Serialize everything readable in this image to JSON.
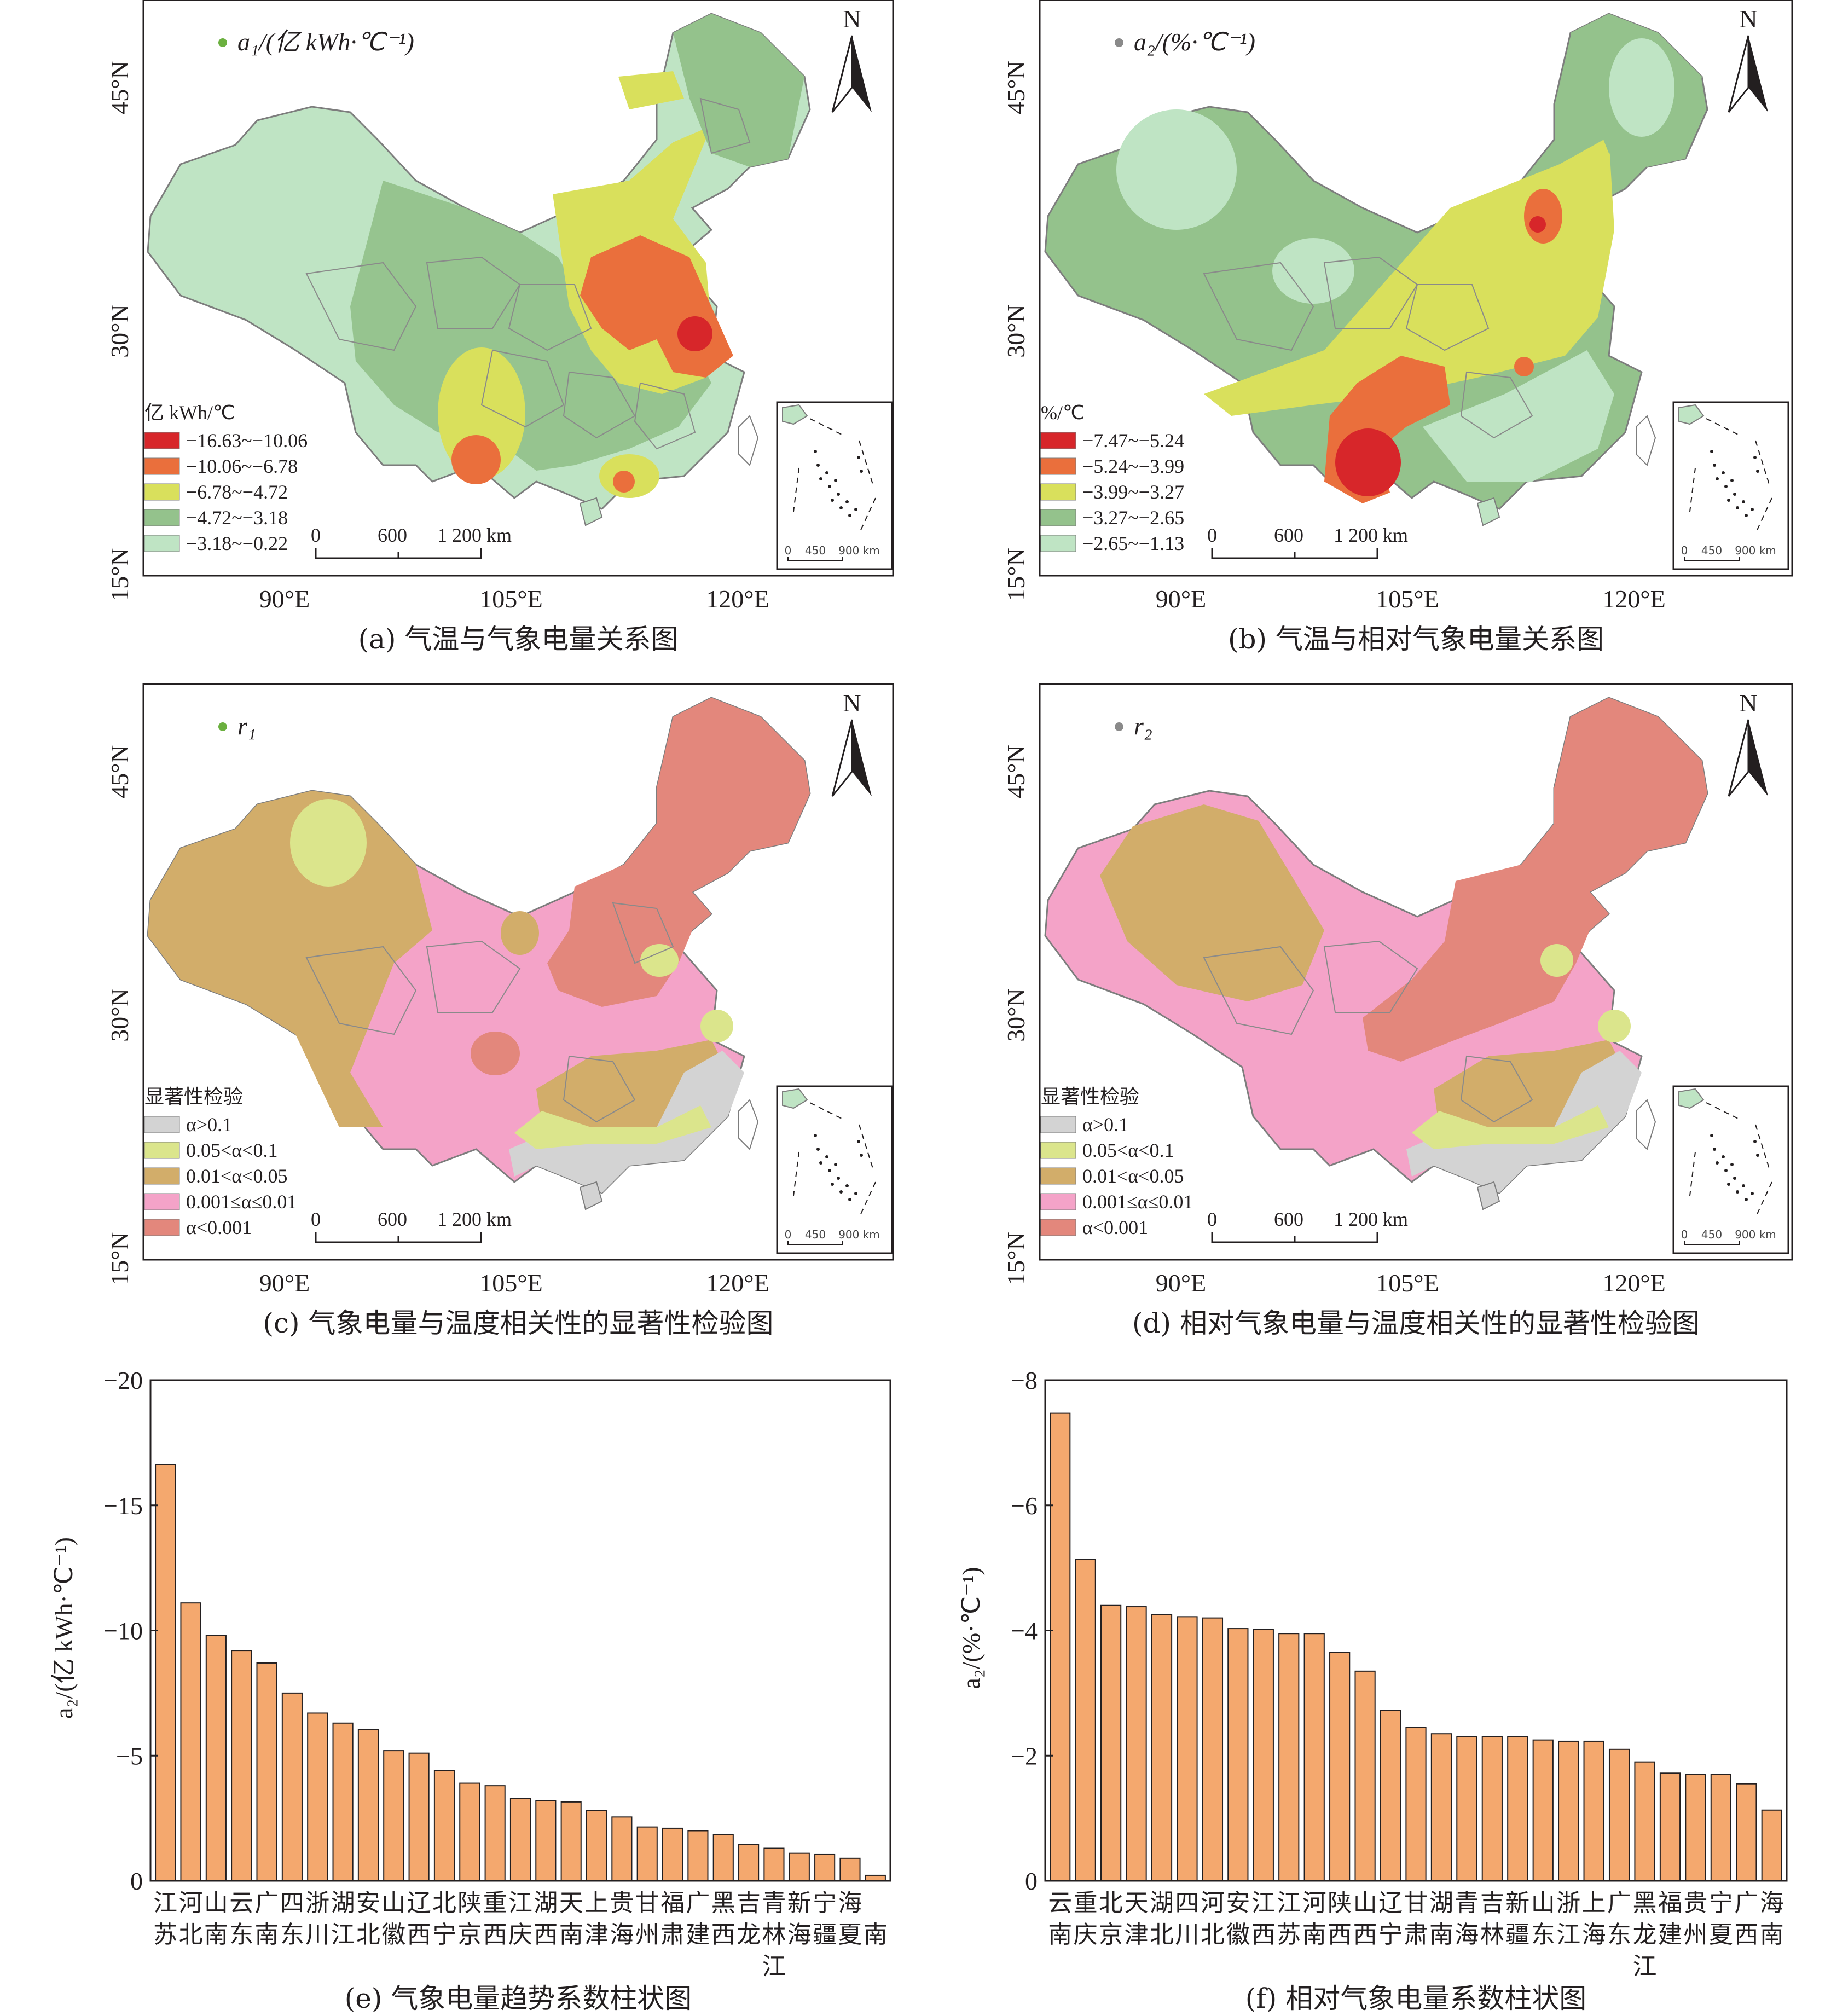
{
  "captions": {
    "a": "(a) 气温与气象电量关系图",
    "b": "(b) 气温与相对气象电量关系图",
    "c": "(c) 气象电量与温度相关性的显著性检验图",
    "d": "(d) 相对气象电量与温度相关性的显著性检验图",
    "e": "(e) 气象电量趋势系数柱状图",
    "f": "(f) 相对气象电量系数柱状图"
  },
  "maps": {
    "lat_labels": [
      "45°N",
      "30°N",
      "15°N"
    ],
    "lon_labels": [
      "90°E",
      "105°E",
      "120°E"
    ],
    "north_label": "N",
    "scale": {
      "zero": "0",
      "mid": "600",
      "end": "1 200 km"
    },
    "inset_scale": {
      "zero": "0",
      "mid": "450",
      "end": "900 km"
    },
    "a": {
      "var_label": "a₁/(亿 kWh·℃⁻¹)",
      "legend_title": "亿 kWh/℃",
      "legend": [
        {
          "label": "−16.63~−10.06",
          "color": "#d7262a"
        },
        {
          "label": "−10.06~−6.78",
          "color": "#ea6f3c"
        },
        {
          "label": "−6.78~−4.72",
          "color": "#d9e05c"
        },
        {
          "label": "−4.72~−3.18",
          "color": "#94c28c"
        },
        {
          "label": "−3.18~−0.22",
          "color": "#bfe4c4"
        }
      ]
    },
    "b": {
      "var_label": "a₂/(%·℃⁻¹)",
      "legend_title": "%/℃",
      "legend": [
        {
          "label": "−7.47~−5.24",
          "color": "#d7262a"
        },
        {
          "label": "−5.24~−3.99",
          "color": "#ea6f3c"
        },
        {
          "label": "−3.99~−3.27",
          "color": "#d9e05c"
        },
        {
          "label": "−3.27~−2.65",
          "color": "#94c28c"
        },
        {
          "label": "−2.65~−1.13",
          "color": "#bfe4c4"
        }
      ]
    },
    "c": {
      "var_label": "r₁",
      "legend_title": "显著性检验",
      "legend": [
        {
          "label": "α>0.1",
          "color": "#d3d3d3"
        },
        {
          "label": "0.05<α<0.1",
          "color": "#dbe58c"
        },
        {
          "label": "0.01<α<0.05",
          "color": "#d2ad6a"
        },
        {
          "label": "0.001≤α≤0.01",
          "color": "#f4a3c8"
        },
        {
          "label": "α<0.001",
          "color": "#e3877c"
        }
      ]
    },
    "d": {
      "var_label": "r₂",
      "legend_title": "显著性检验",
      "legend": [
        {
          "label": "α>0.1",
          "color": "#d3d3d3"
        },
        {
          "label": "0.05<α<0.1",
          "color": "#dbe58c"
        },
        {
          "label": "0.01<α<0.05",
          "color": "#d2ad6a"
        },
        {
          "label": "0.001≤α≤0.01",
          "color": "#f4a3c8"
        },
        {
          "label": "α<0.001",
          "color": "#e3877c"
        }
      ]
    }
  },
  "chart_data": [
    {
      "id": "e",
      "type": "bar",
      "ylabel": "a₂/(亿 kWh·℃⁻¹)",
      "ylim": [
        0,
        -20
      ],
      "yticks": [
        "0",
        "−5",
        "−10",
        "−15",
        "−20"
      ],
      "categories": [
        [
          "江",
          "苏"
        ],
        [
          "河",
          "北"
        ],
        [
          "山",
          "南"
        ],
        [
          "云",
          "东"
        ],
        [
          "广",
          "南"
        ],
        [
          "四",
          "东"
        ],
        [
          "浙",
          "川"
        ],
        [
          "湖",
          "江"
        ],
        [
          "安",
          "北"
        ],
        [
          "山",
          "徽"
        ],
        [
          "辽",
          "西"
        ],
        [
          "北",
          "宁"
        ],
        [
          "陕",
          "京"
        ],
        [
          "重",
          "西"
        ],
        [
          "江",
          "庆"
        ],
        [
          "湖",
          "西"
        ],
        [
          "天",
          "南"
        ],
        [
          "上",
          "津"
        ],
        [
          "贵",
          "海"
        ],
        [
          "甘",
          "州"
        ],
        [
          "福",
          "肃"
        ],
        [
          "广",
          "建"
        ],
        [
          "黑",
          "西"
        ],
        [
          "吉",
          "龙"
        ],
        [
          "青",
          "林",
          "江"
        ],
        [
          "新",
          "海"
        ],
        [
          "宁",
          "疆"
        ],
        [
          "海",
          "夏"
        ],
        [
          "",
          "南"
        ]
      ],
      "values": [
        -16.63,
        -11.1,
        -9.8,
        -9.2,
        -8.7,
        -7.5,
        -6.7,
        -6.3,
        -6.05,
        -5.2,
        -5.1,
        -4.4,
        -3.9,
        -3.8,
        -3.3,
        -3.2,
        -3.15,
        -2.8,
        -2.55,
        -2.15,
        -2.1,
        -2.0,
        -1.85,
        -1.45,
        -1.3,
        -1.1,
        -1.05,
        -0.9,
        -0.22
      ],
      "bar_color": "#f4a86e"
    },
    {
      "id": "f",
      "type": "bar",
      "ylabel": "a₂/(%·℃⁻¹)",
      "ylim": [
        0,
        -8
      ],
      "yticks": [
        "0",
        "−2",
        "−4",
        "−6",
        "−8"
      ],
      "categories": [
        [
          "云",
          "南"
        ],
        [
          "重",
          "庆"
        ],
        [
          "北",
          "京"
        ],
        [
          "天",
          "津"
        ],
        [
          "湖",
          "北"
        ],
        [
          "四",
          "川"
        ],
        [
          "河",
          "北"
        ],
        [
          "安",
          "徽"
        ],
        [
          "江",
          "西"
        ],
        [
          "江",
          "苏"
        ],
        [
          "河",
          "南"
        ],
        [
          "陕",
          "西"
        ],
        [
          "山",
          "西"
        ],
        [
          "辽",
          "宁"
        ],
        [
          "甘",
          "肃"
        ],
        [
          "湖",
          "南"
        ],
        [
          "青",
          "海"
        ],
        [
          "吉",
          "林"
        ],
        [
          "新",
          "疆"
        ],
        [
          "山",
          "东"
        ],
        [
          "浙",
          "江"
        ],
        [
          "上",
          "海"
        ],
        [
          "广",
          "东"
        ],
        [
          "黑",
          "龙",
          "江"
        ],
        [
          "福",
          "建"
        ],
        [
          "贵",
          "州"
        ],
        [
          "宁",
          "夏"
        ],
        [
          "广",
          "西"
        ],
        [
          "海",
          "南"
        ]
      ],
      "values": [
        -7.47,
        -5.14,
        -4.4,
        -4.38,
        -4.25,
        -4.22,
        -4.2,
        -4.03,
        -4.02,
        -3.95,
        -3.95,
        -3.65,
        -3.35,
        -2.72,
        -2.45,
        -2.35,
        -2.3,
        -2.3,
        -2.3,
        -2.25,
        -2.23,
        -2.23,
        -2.1,
        -1.9,
        -1.72,
        -1.7,
        -1.7,
        -1.55,
        -1.13
      ],
      "bar_color": "#f4a86e"
    }
  ]
}
